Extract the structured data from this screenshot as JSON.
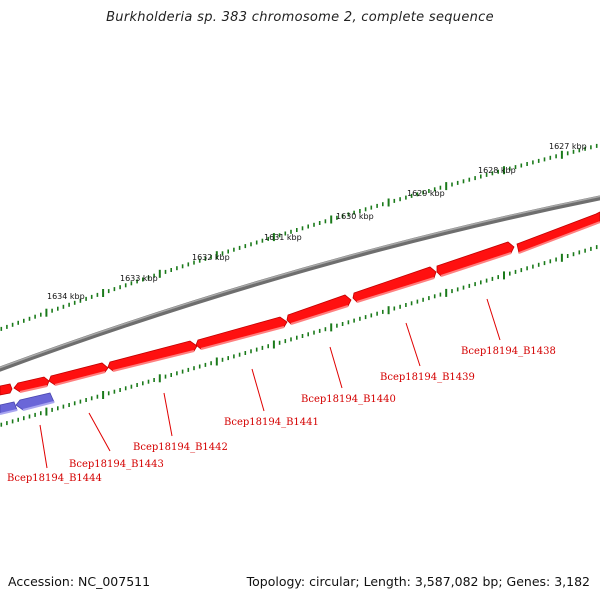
{
  "title": "Burkholderia sp. 383 chromosome 2, complete sequence",
  "footer": {
    "accession": "Accession: NC_007511",
    "summary": "Topology: circular; Length: 3,587,082 bp; Genes: 3,182"
  },
  "colors": {
    "backbone": "#888888",
    "forward_gene": "#ff0000",
    "reverse_gene": "#7777dd",
    "tick": "#1a7a1a",
    "label": "#d40000"
  },
  "ruler_labels": [
    "1627 kbp",
    "1628 kbp",
    "1629 kbp",
    "1630 kbp",
    "1631 kbp",
    "1632 kbp",
    "1633 kbp",
    "1634 kbp"
  ],
  "genes": [
    {
      "locus_tag": "Bcep18194_B1438",
      "strand": "forward"
    },
    {
      "locus_tag": "Bcep18194_B1439",
      "strand": "forward"
    },
    {
      "locus_tag": "Bcep18194_B1440",
      "strand": "forward"
    },
    {
      "locus_tag": "Bcep18194_B1441",
      "strand": "forward"
    },
    {
      "locus_tag": "Bcep18194_B1442",
      "strand": "forward"
    },
    {
      "locus_tag": "Bcep18194_B1443",
      "strand": "forward"
    },
    {
      "locus_tag": "Bcep18194_B1444",
      "strand": "reverse"
    }
  ]
}
